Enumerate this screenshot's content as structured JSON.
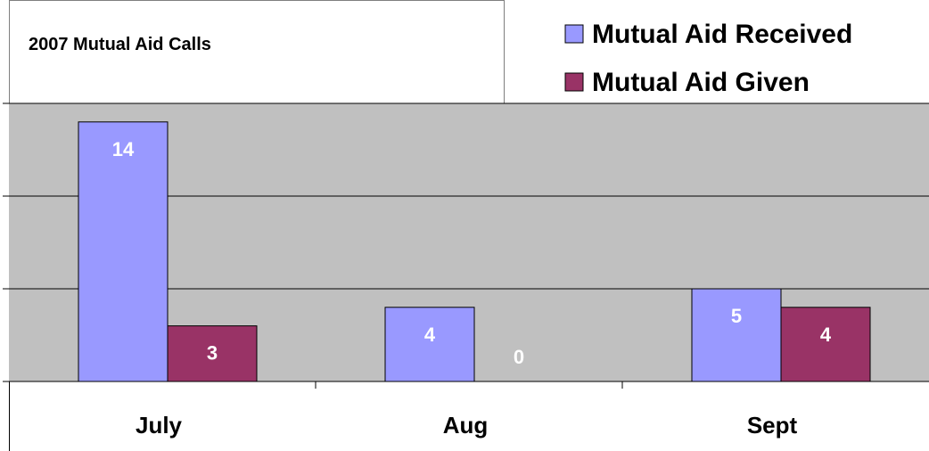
{
  "chart_data": {
    "type": "bar",
    "title": "2007 Mutual Aid Calls",
    "xlabel": "",
    "ylabel": "",
    "categories": [
      "July",
      "Aug",
      "Sept"
    ],
    "series": [
      {
        "name": "Mutual Aid Received",
        "values": [
          14,
          4,
          5
        ],
        "color": "#9999ff"
      },
      {
        "name": "Mutual Aid Given",
        "values": [
          3,
          0,
          4
        ],
        "color": "#993366"
      }
    ],
    "ylim": [
      0,
      15
    ],
    "y_tick_step": 5,
    "grid": true,
    "legend_position": "top-right",
    "data_labels": true,
    "plot_background": "#c0c0c0"
  }
}
